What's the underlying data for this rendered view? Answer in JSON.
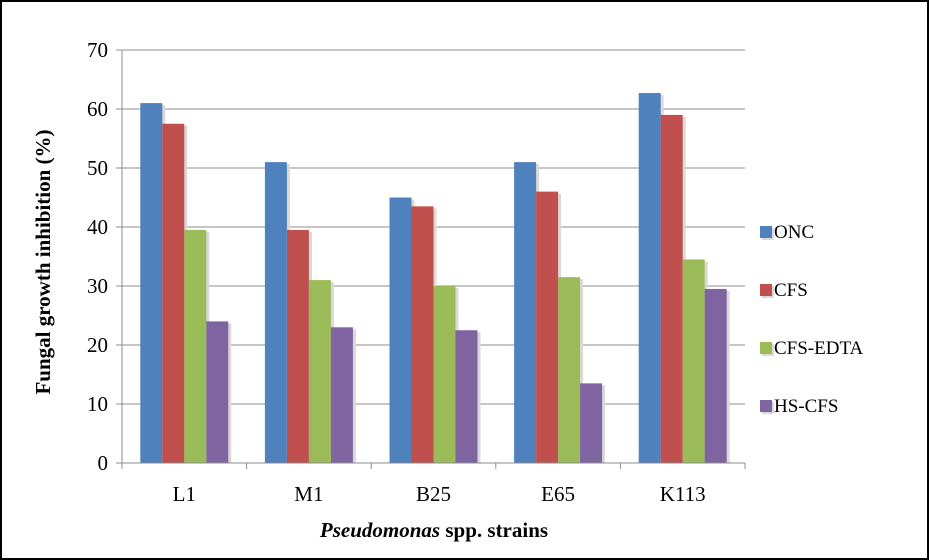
{
  "chart_data": {
    "type": "bar",
    "categories": [
      "L1",
      "M1",
      "B25",
      "E65",
      "K113"
    ],
    "series": [
      {
        "name": "ONC",
        "color": "#4F81BD",
        "values": [
          61,
          51,
          45,
          51,
          62.7
        ]
      },
      {
        "name": "CFS",
        "color": "#C0504D",
        "values": [
          57.5,
          39.5,
          43.5,
          46,
          59
        ]
      },
      {
        "name": "CFS-EDTA",
        "color": "#9BBB59",
        "values": [
          39.5,
          31,
          30,
          31.5,
          34.5
        ]
      },
      {
        "name": "HS-CFS",
        "color": "#8064A2",
        "values": [
          24,
          23,
          22.5,
          13.5,
          29.5
        ]
      }
    ],
    "ylabel": "Fungal growth inhibition (%)",
    "xlabel_italic": "Pseudomonas",
    "xlabel_rest": " spp. strains",
    "ylim": [
      0,
      70
    ],
    "yticks": [
      "0",
      "10",
      "20",
      "30",
      "40",
      "50",
      "60",
      "70"
    ],
    "grid": true,
    "legend_position": "right"
  }
}
